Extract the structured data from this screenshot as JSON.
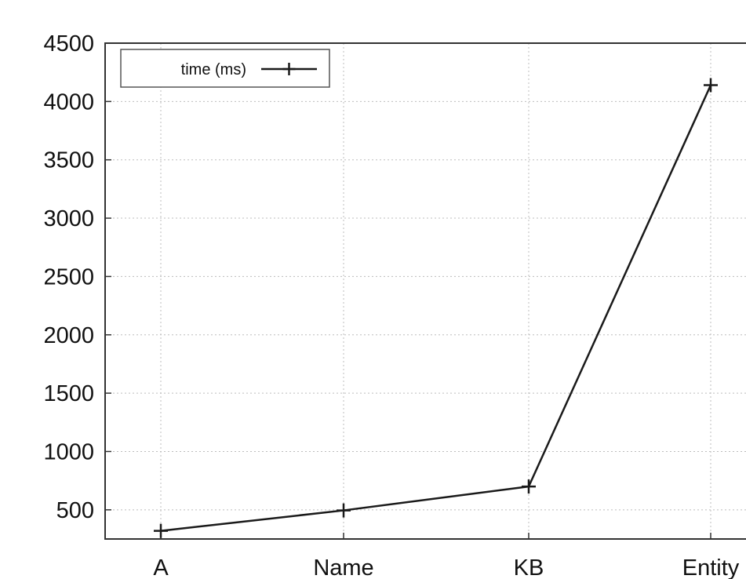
{
  "chart_data": {
    "type": "line",
    "categories": [
      "A",
      "Name",
      "KB",
      "Entity"
    ],
    "series": [
      {
        "name": "time (ms)",
        "values": [
          320,
          495,
          700,
          4140
        ]
      }
    ],
    "ylim": [
      250,
      4500
    ],
    "yticks": [
      500,
      1000,
      1500,
      2000,
      2500,
      3000,
      3500,
      4000,
      4500
    ],
    "grid": true,
    "legend_position": "top-left",
    "colors": {
      "line": "#1a1a1a",
      "grid": "#bdbdbd",
      "axis": "#333333"
    }
  }
}
